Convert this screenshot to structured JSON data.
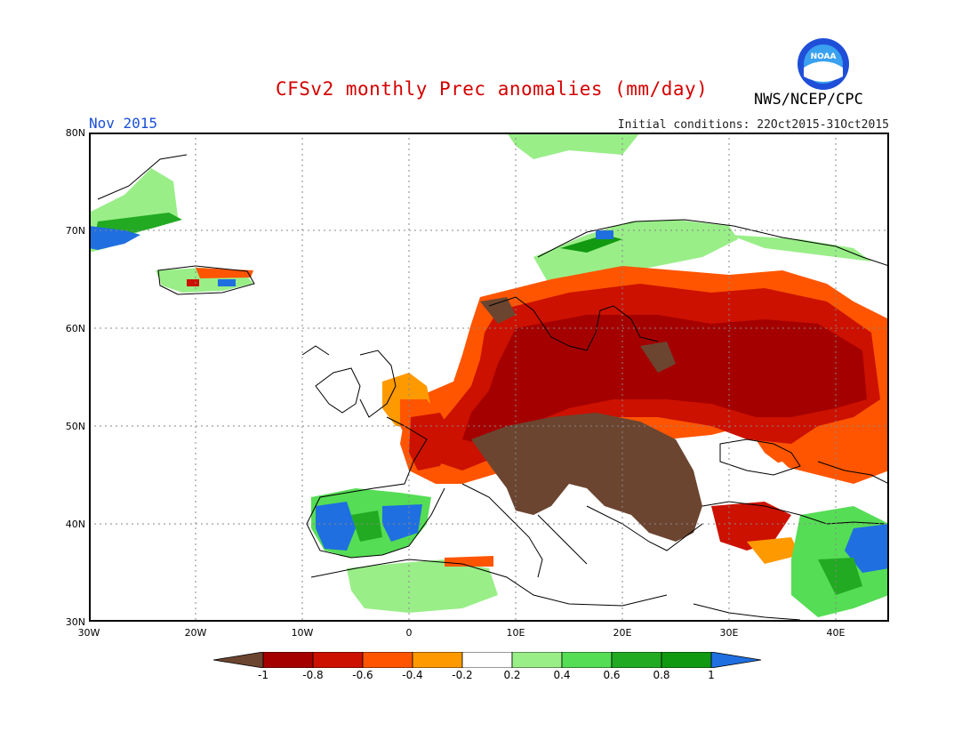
{
  "header": {
    "title": "CFSv2 monthly Prec anomalies (mm/day)",
    "agency": "NWS/NCEP/CPC",
    "month": "Nov 2015",
    "initial_conditions": "Initial conditions: 22Oct2015-31Oct2015",
    "logo_text": "NOAA"
  },
  "map": {
    "region": "Europe",
    "lat_labels": [
      "80N",
      "70N",
      "60N",
      "50N",
      "40N",
      "30N"
    ],
    "lon_labels": [
      "30W",
      "20W",
      "10W",
      "0",
      "10E",
      "20E",
      "30E",
      "40E"
    ]
  },
  "colorbar": {
    "labels": [
      "-1",
      "-0.8",
      "-0.6",
      "-0.4",
      "-0.2",
      "0.2",
      "0.4",
      "0.6",
      "0.8",
      "1"
    ],
    "colors": [
      "#6b4530",
      "#a50000",
      "#cc1100",
      "#ff5500",
      "#ff9900",
      "#ffffff",
      "#99ee88",
      "#55dd55",
      "#22aa22",
      "#119911",
      "#1f6fe0"
    ]
  }
}
